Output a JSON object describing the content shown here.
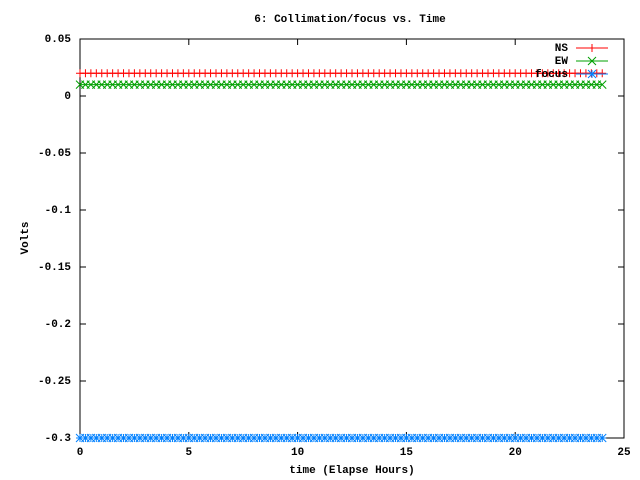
{
  "chart_data": {
    "type": "line",
    "title": "6: Collimation/focus vs. Time",
    "x_label": "time (Elapse Hours)",
    "y_label": "Volts",
    "x": [
      0,
      0.25,
      0.5,
      0.75,
      1,
      1.25,
      1.5,
      1.75,
      2,
      2.25,
      2.5,
      2.75,
      3,
      3.25,
      3.5,
      3.75,
      4,
      4.25,
      4.5,
      4.75,
      5,
      5.25,
      5.5,
      5.75,
      6,
      6.25,
      6.5,
      6.75,
      7,
      7.25,
      7.5,
      7.75,
      8,
      8.25,
      8.5,
      8.75,
      9,
      9.25,
      9.5,
      9.75,
      10,
      10.25,
      10.5,
      10.75,
      11,
      11.25,
      11.5,
      11.75,
      12,
      12.25,
      12.5,
      12.75,
      13,
      13.25,
      13.5,
      13.75,
      14,
      14.25,
      14.5,
      14.75,
      15,
      15.25,
      15.5,
      15.75,
      16,
      16.25,
      16.5,
      16.75,
      17,
      17.25,
      17.5,
      17.75,
      18,
      18.25,
      18.5,
      18.75,
      19,
      19.25,
      19.5,
      19.75,
      20,
      20.25,
      20.5,
      20.75,
      21,
      21.25,
      21.5,
      21.75,
      22,
      22.25,
      22.5,
      22.75,
      23,
      23.25,
      23.5,
      23.75,
      24
    ],
    "series": [
      {
        "name": "NS",
        "color": "#ff0000",
        "marker": "plus",
        "values": [
          0.02,
          0.02,
          0.02,
          0.02,
          0.02,
          0.02,
          0.02,
          0.02,
          0.02,
          0.02,
          0.02,
          0.02,
          0.02,
          0.02,
          0.02,
          0.02,
          0.02,
          0.02,
          0.02,
          0.02,
          0.02,
          0.02,
          0.02,
          0.02,
          0.02,
          0.02,
          0.02,
          0.02,
          0.02,
          0.02,
          0.02,
          0.02,
          0.02,
          0.02,
          0.02,
          0.02,
          0.02,
          0.02,
          0.02,
          0.02,
          0.02,
          0.02,
          0.02,
          0.02,
          0.02,
          0.02,
          0.02,
          0.02,
          0.02,
          0.02,
          0.02,
          0.02,
          0.02,
          0.02,
          0.02,
          0.02,
          0.02,
          0.02,
          0.02,
          0.02,
          0.02,
          0.02,
          0.02,
          0.02,
          0.02,
          0.02,
          0.02,
          0.02,
          0.02,
          0.02,
          0.02,
          0.02,
          0.02,
          0.02,
          0.02,
          0.02,
          0.02,
          0.02,
          0.02,
          0.02,
          0.02,
          0.02,
          0.02,
          0.02,
          0.02,
          0.02,
          0.02,
          0.02,
          0.02,
          0.02,
          0.02,
          0.02,
          0.02,
          0.02,
          0.02,
          0.02,
          0.02
        ]
      },
      {
        "name": "EW",
        "color": "#00a000",
        "marker": "cross",
        "values": [
          0.01,
          0.01,
          0.01,
          0.01,
          0.01,
          0.01,
          0.01,
          0.01,
          0.01,
          0.01,
          0.01,
          0.01,
          0.01,
          0.01,
          0.01,
          0.01,
          0.01,
          0.01,
          0.01,
          0.01,
          0.01,
          0.01,
          0.01,
          0.01,
          0.01,
          0.01,
          0.01,
          0.01,
          0.01,
          0.01,
          0.01,
          0.01,
          0.01,
          0.01,
          0.01,
          0.01,
          0.01,
          0.01,
          0.01,
          0.01,
          0.01,
          0.01,
          0.01,
          0.01,
          0.01,
          0.01,
          0.01,
          0.01,
          0.01,
          0.01,
          0.01,
          0.01,
          0.01,
          0.01,
          0.01,
          0.01,
          0.01,
          0.01,
          0.01,
          0.01,
          0.01,
          0.01,
          0.01,
          0.01,
          0.01,
          0.01,
          0.01,
          0.01,
          0.01,
          0.01,
          0.01,
          0.01,
          0.01,
          0.01,
          0.01,
          0.01,
          0.01,
          0.01,
          0.01,
          0.01,
          0.01,
          0.01,
          0.01,
          0.01,
          0.01,
          0.01,
          0.01,
          0.01,
          0.01,
          0.01,
          0.01,
          0.01,
          0.01,
          0.01,
          0.01,
          0.01,
          0.01
        ]
      },
      {
        "name": "focus",
        "color": "#0080ff",
        "marker": "star",
        "values": [
          -0.3,
          -0.3,
          -0.3,
          -0.3,
          -0.3,
          -0.3,
          -0.3,
          -0.3,
          -0.3,
          -0.3,
          -0.3,
          -0.3,
          -0.3,
          -0.3,
          -0.3,
          -0.3,
          -0.3,
          -0.3,
          -0.3,
          -0.3,
          -0.3,
          -0.3,
          -0.3,
          -0.3,
          -0.3,
          -0.3,
          -0.3,
          -0.3,
          -0.3,
          -0.3,
          -0.3,
          -0.3,
          -0.3,
          -0.3,
          -0.3,
          -0.3,
          -0.3,
          -0.3,
          -0.3,
          -0.3,
          -0.3,
          -0.3,
          -0.3,
          -0.3,
          -0.3,
          -0.3,
          -0.3,
          -0.3,
          -0.3,
          -0.3,
          -0.3,
          -0.3,
          -0.3,
          -0.3,
          -0.3,
          -0.3,
          -0.3,
          -0.3,
          -0.3,
          -0.3,
          -0.3,
          -0.3,
          -0.3,
          -0.3,
          -0.3,
          -0.3,
          -0.3,
          -0.3,
          -0.3,
          -0.3,
          -0.3,
          -0.3,
          -0.3,
          -0.3,
          -0.3,
          -0.3,
          -0.3,
          -0.3,
          -0.3,
          -0.3,
          -0.3,
          -0.3,
          -0.3,
          -0.3,
          -0.3,
          -0.3,
          -0.3,
          -0.3,
          -0.3,
          -0.3,
          -0.3,
          -0.3,
          -0.3,
          -0.3,
          -0.3,
          -0.3,
          -0.3
        ]
      }
    ],
    "xlim": [
      0,
      25
    ],
    "xticks": [
      0,
      5,
      10,
      15,
      20,
      25
    ],
    "ylim": [
      -0.3,
      0.05
    ],
    "yticks": [
      0.05,
      0,
      -0.05,
      -0.1,
      -0.15,
      -0.2,
      -0.25,
      -0.3
    ],
    "grid": false,
    "legend_position": "top-right"
  }
}
